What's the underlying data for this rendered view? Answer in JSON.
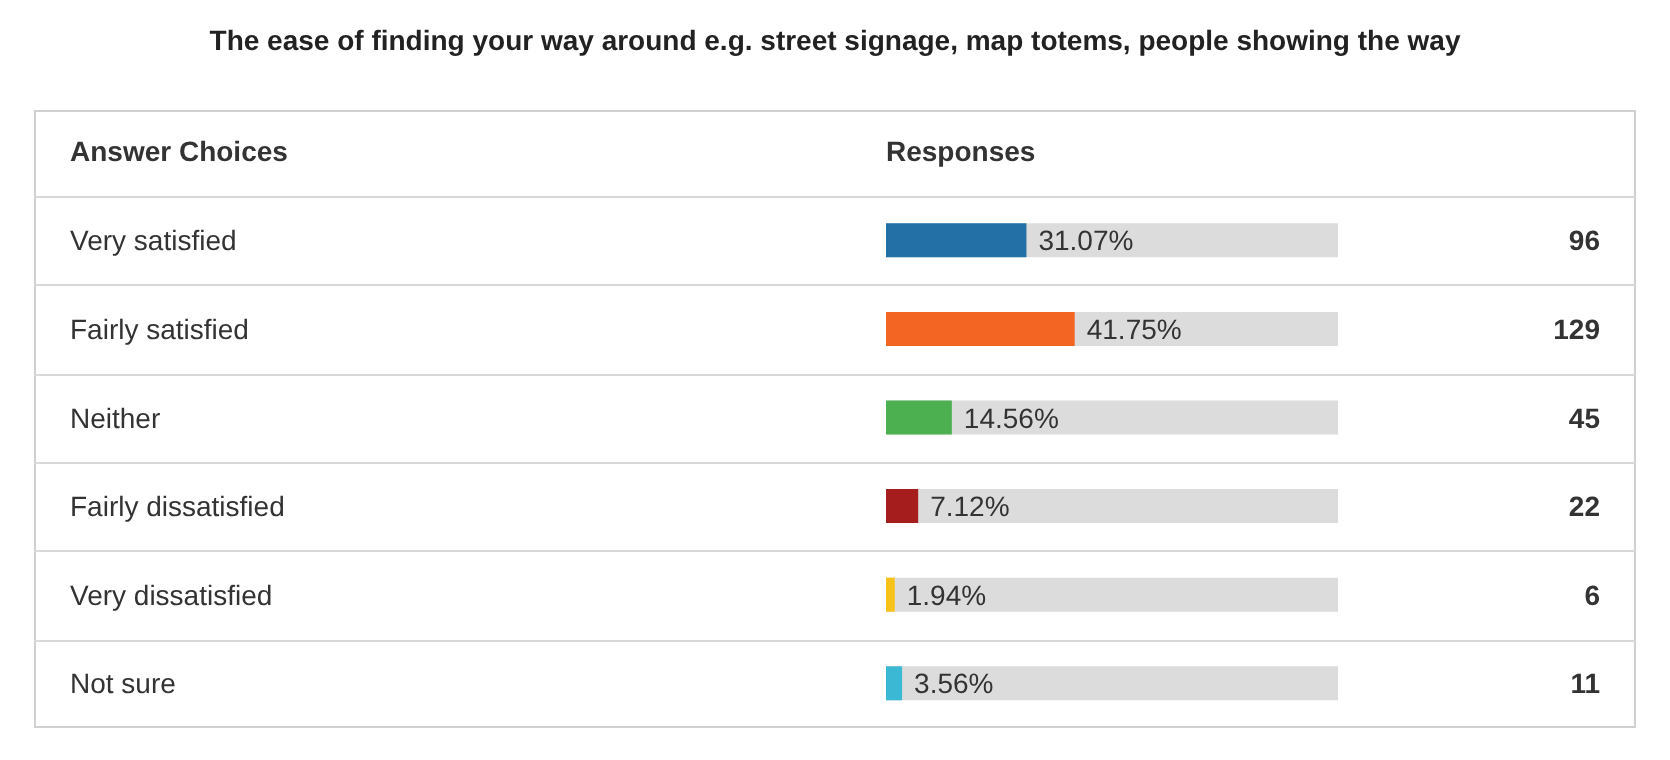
{
  "chart_data": {
    "type": "bar",
    "orientation": "horizontal",
    "title": "The ease of finding your way around e.g. street signage, map totems, people showing the way",
    "ylabel": "Answer Choices",
    "xlabel": "Responses",
    "categories": [
      "Very satisfied",
      "Fairly satisfied",
      "Neither",
      "Fairly dissatisfied",
      "Very dissatisfied",
      "Not sure"
    ],
    "values": [
      31.07,
      41.75,
      14.56,
      7.12,
      1.94,
      3.56
    ],
    "colors": [
      "#2270a6",
      "#f26522",
      "#4caf50",
      "#a51d1d",
      "#f7c21a",
      "#3ab8d4"
    ],
    "value_labels": [
      "31.07%",
      "41.75%",
      "14.56%",
      "7.12%",
      "1.94%",
      "3.56%"
    ],
    "annotations": [
      "96",
      "129",
      "45",
      "22",
      "6",
      "11"
    ]
  }
}
